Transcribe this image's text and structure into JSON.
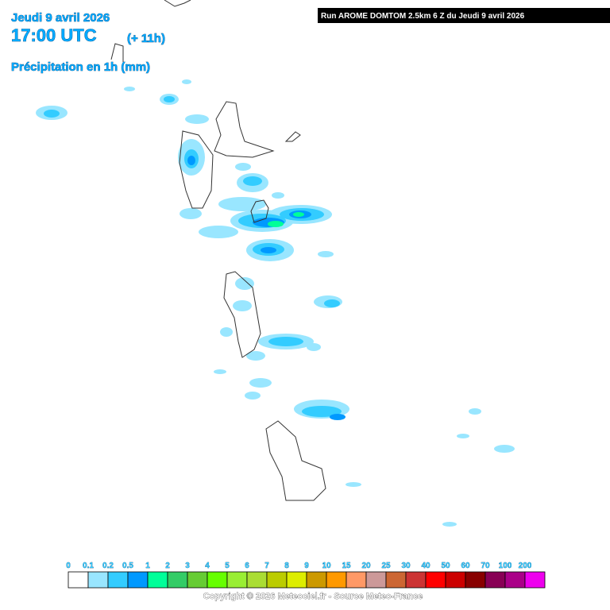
{
  "header": {
    "date": "Jeudi 9 avril 2026",
    "time": "17:00 UTC",
    "lead": "(+ 11h)",
    "parameter": "Précipitation en 1h (mm)"
  },
  "run_label": "Run AROME DOMTOM 2.5km 6 Z du Jeudi 9 avril 2026",
  "legend": {
    "items": [
      {
        "label": "0",
        "color": "#ffffff"
      },
      {
        "label": "0.1",
        "color": "#99e6ff"
      },
      {
        "label": "0.2",
        "color": "#33ccff"
      },
      {
        "label": "0.5",
        "color": "#0099ff"
      },
      {
        "label": "1",
        "color": "#00ff99"
      },
      {
        "label": "2",
        "color": "#33cc66"
      },
      {
        "label": "3",
        "color": "#66cc33"
      },
      {
        "label": "4",
        "color": "#66ff00"
      },
      {
        "label": "5",
        "color": "#99ee33"
      },
      {
        "label": "6",
        "color": "#aadd33"
      },
      {
        "label": "7",
        "color": "#bbcc00"
      },
      {
        "label": "8",
        "color": "#dded00"
      },
      {
        "label": "9",
        "color": "#cc9900"
      },
      {
        "label": "10",
        "color": "#ff9900"
      },
      {
        "label": "15",
        "color": "#ff9966"
      },
      {
        "label": "20",
        "color": "#cc9999"
      },
      {
        "label": "25",
        "color": "#cc6633"
      },
      {
        "label": "30",
        "color": "#cc3333"
      },
      {
        "label": "40",
        "color": "#ff0000"
      },
      {
        "label": "50",
        "color": "#cc0000"
      },
      {
        "label": "60",
        "color": "#880000"
      },
      {
        "label": "70",
        "color": "#880055"
      },
      {
        "label": "100",
        "color": "#aa0088"
      },
      {
        "label": "200",
        "color": "#ee00ee"
      }
    ]
  },
  "copyright": "Copyright © 2026 Meteociel.fr - Source Meteo-France"
}
